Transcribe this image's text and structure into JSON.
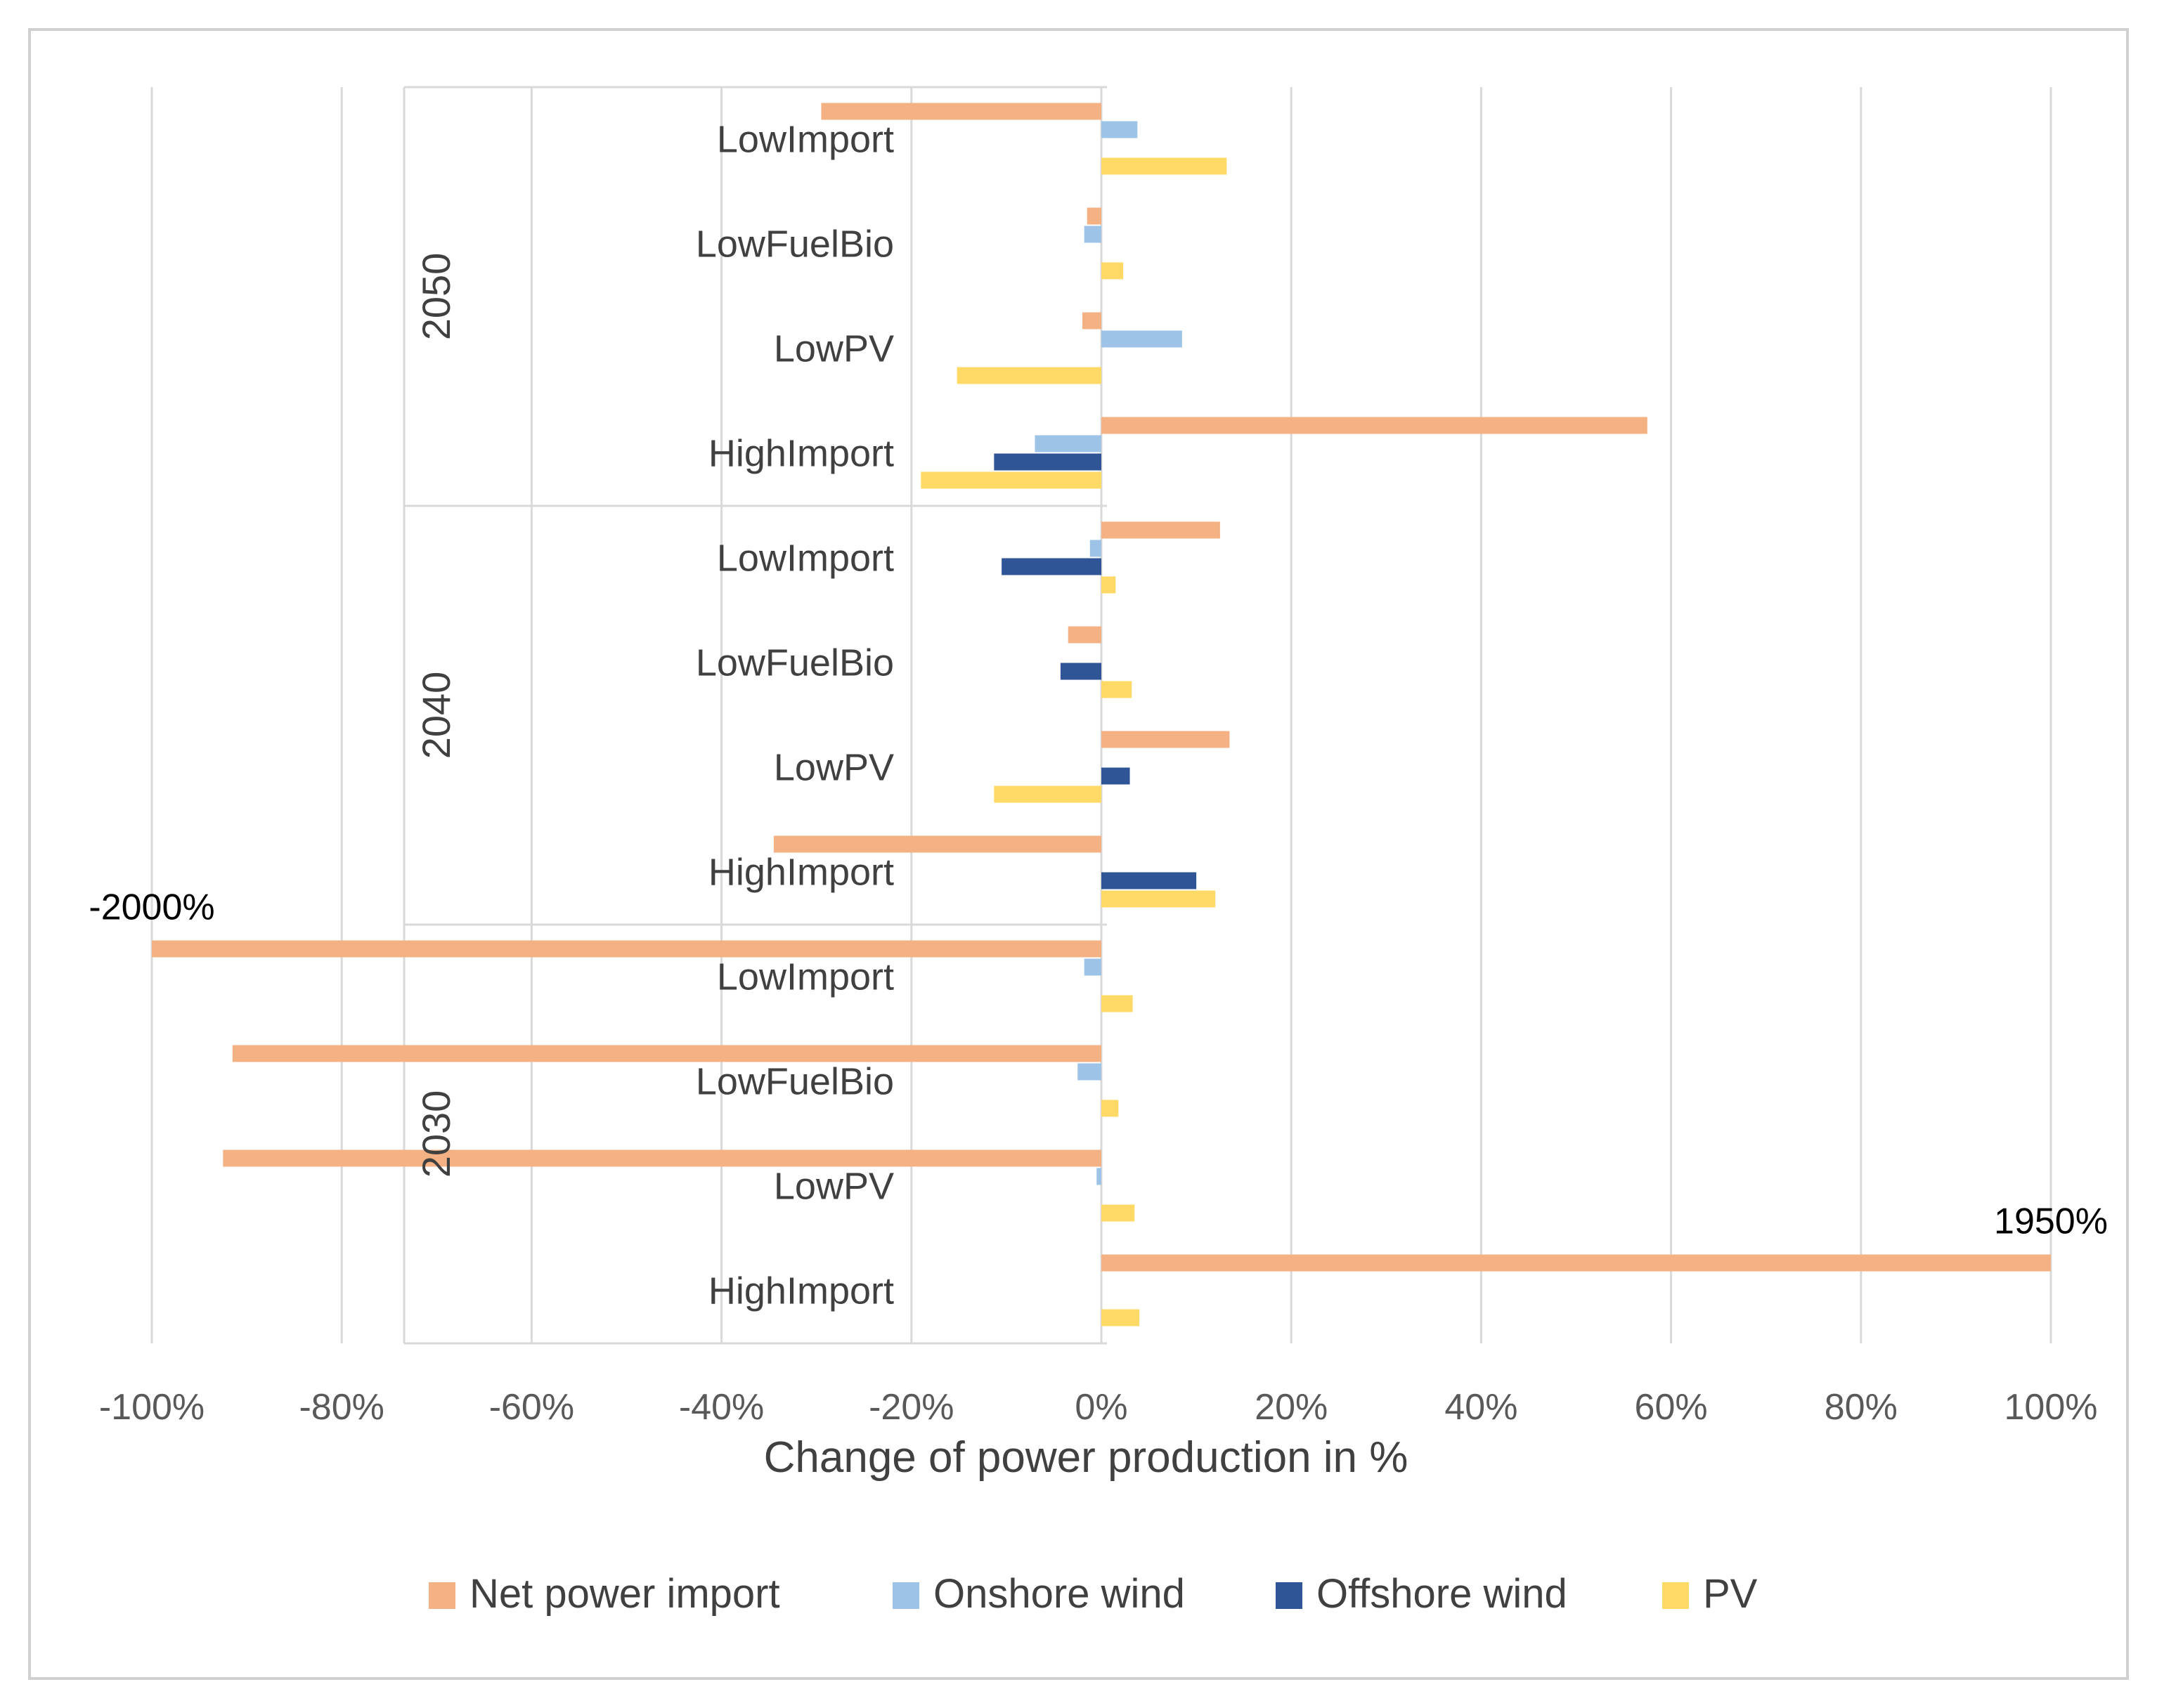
{
  "chart_data": {
    "type": "bar",
    "orientation": "horizontal",
    "xlabel": "Change of power production in %",
    "xlim": [
      -100,
      100
    ],
    "x_ticks": [
      "-100%",
      "-80%",
      "-60%",
      "-40%",
      "-20%",
      "0%",
      "20%",
      "40%",
      "60%",
      "80%",
      "100%"
    ],
    "gridlines": "vertical",
    "legend_position": "bottom",
    "groups": [
      {
        "name": "2050",
        "categories": [
          "LowImport",
          "LowFuelBio",
          "LowPV",
          "HighImport"
        ]
      },
      {
        "name": "2040",
        "categories": [
          "LowImport",
          "LowFuelBio",
          "LowPV",
          "HighImport"
        ]
      },
      {
        "name": "2030",
        "categories": [
          "LowImport",
          "LowFuelBio",
          "LowPV",
          "HighImport"
        ]
      }
    ],
    "series": [
      {
        "name": "Net power import",
        "color": "#f4b183",
        "values": [
          -29.5,
          -1.5,
          -2,
          57.5,
          12.5,
          -3.5,
          13.5,
          -34.5,
          -100,
          -91.5,
          -92.5,
          100
        ]
      },
      {
        "name": "Onshore wind",
        "color": "#9dc3e6",
        "values": [
          3.8,
          -1.8,
          8.5,
          -7,
          -1.2,
          0,
          0,
          0,
          -1.8,
          -2.5,
          -0.5,
          0
        ]
      },
      {
        "name": "Offshore wind",
        "color": "#2f5597",
        "values": [
          0,
          0,
          0,
          -11.3,
          -10.5,
          -4.3,
          3,
          10,
          0,
          0,
          0,
          0
        ]
      },
      {
        "name": "PV",
        "color": "#ffd966",
        "values": [
          13.2,
          2.3,
          -15.2,
          -19,
          1.5,
          3.2,
          -11.3,
          12,
          3.3,
          1.8,
          3.5,
          4
        ]
      }
    ],
    "annotations": [
      {
        "text": "-2000%",
        "series": "Net power import",
        "group": "2030",
        "category": "LowImport"
      },
      {
        "text": "1950%",
        "series": "Net power import",
        "group": "2030",
        "category": "HighImport"
      }
    ]
  }
}
